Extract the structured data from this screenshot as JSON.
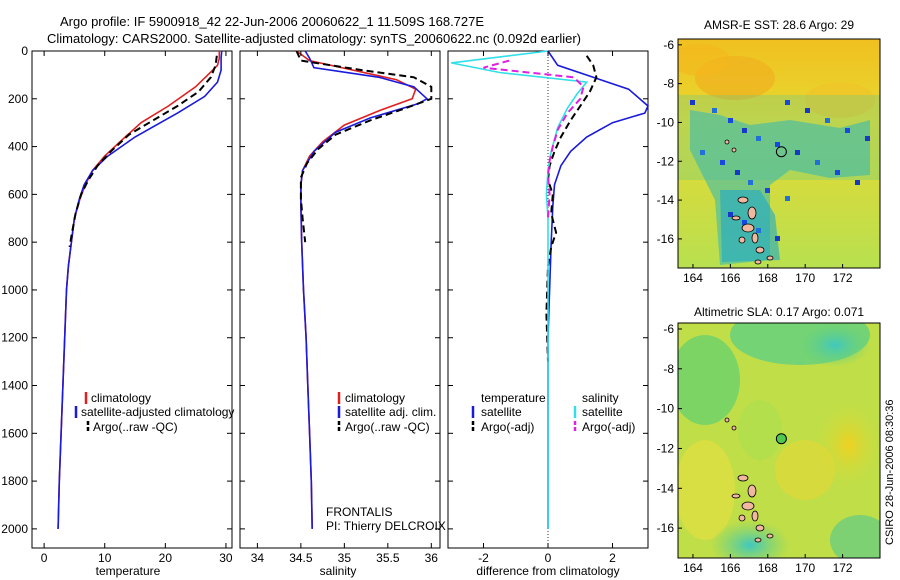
{
  "figure": {
    "title_line1": "Argo profile: IF 5900918_42 22-Jun-2006 20060622_1 11.509S 168.727E",
    "title_line2": "Climatology: CARS2000. Satellite-adjusted climatology: synTS_20060622.nc (0.092d earlier)",
    "side_caption": "CSIRO 28-Jun-2006 08:30:36"
  },
  "colors": {
    "climatology": "#e02020",
    "satellite": "#1a1adc",
    "argo": "#000000",
    "salinity_satellite": "#30e0e8",
    "salinity_argo": "#e020e0"
  },
  "chart_data": [
    {
      "id": "temperature-profile",
      "type": "line",
      "xlabel": "temperature",
      "xlim": [
        -2,
        31
      ],
      "xticks": [
        0,
        10,
        20,
        30
      ],
      "ylim": [
        2080,
        0
      ],
      "yticks": [
        0,
        200,
        400,
        600,
        800,
        1000,
        1200,
        1400,
        1600,
        1800,
        2000
      ],
      "legend": {
        "placement": "lower-right",
        "entries": [
          "climatology",
          "satellite-adjusted climatology",
          "Argo(..raw -QC)"
        ]
      },
      "series": [
        {
          "name": "climatology",
          "color_key": "climatology",
          "dash": "solid",
          "points": [
            [
              28.9,
              0
            ],
            [
              28.9,
              30
            ],
            [
              28.6,
              60
            ],
            [
              27,
              100
            ],
            [
              25,
              150
            ],
            [
              20.5,
              230
            ],
            [
              16,
              300
            ],
            [
              12.5,
              380
            ],
            [
              10,
              440
            ],
            [
              8,
              500
            ],
            [
              6.8,
              560
            ],
            [
              5.9,
              620
            ],
            [
              5.0,
              700
            ],
            [
              4.5,
              800
            ],
            [
              4.0,
              900
            ],
            [
              3.7,
              1000
            ],
            [
              3.4,
              1200
            ],
            [
              3.1,
              1400
            ],
            [
              2.8,
              1600
            ],
            [
              2.5,
              1800
            ],
            [
              2.3,
              2000
            ]
          ]
        },
        {
          "name": "satellite-adjusted climatology",
          "color_key": "satellite",
          "dash": "solid",
          "points": [
            [
              29.3,
              0
            ],
            [
              29.2,
              30
            ],
            [
              29.2,
              80
            ],
            [
              28.6,
              130
            ],
            [
              26.5,
              190
            ],
            [
              22,
              260
            ],
            [
              15,
              360
            ],
            [
              10.5,
              440
            ],
            [
              8,
              500
            ],
            [
              6.6,
              560
            ],
            [
              5.8,
              620
            ],
            [
              5.0,
              700
            ],
            [
              4.5,
              800
            ],
            [
              4.0,
              900
            ],
            [
              3.7,
              1000
            ],
            [
              3.4,
              1200
            ],
            [
              3.1,
              1400
            ],
            [
              2.8,
              1600
            ],
            [
              2.5,
              1800
            ],
            [
              2.3,
              2000
            ]
          ]
        },
        {
          "name": "Argo(..raw -QC)",
          "color_key": "argo",
          "dash": "dashed",
          "points": [
            [
              28.5,
              20
            ],
            [
              28.3,
              60
            ],
            [
              27.5,
              110
            ],
            [
              25.5,
              170
            ],
            [
              22,
              230
            ],
            [
              18,
              290
            ],
            [
              14,
              350
            ],
            [
              11,
              420
            ],
            [
              8.8,
              480
            ],
            [
              7.3,
              540
            ],
            [
              6.1,
              600
            ],
            [
              5.2,
              680
            ],
            [
              4.6,
              760
            ],
            [
              4.2,
              820
            ]
          ]
        }
      ]
    },
    {
      "id": "salinity-profile",
      "type": "line",
      "xlabel": "salinity",
      "xlim": [
        33.8,
        36.1
      ],
      "xticks": [
        34,
        34.5,
        35,
        35.5,
        36
      ],
      "ylim": [
        2080,
        0
      ],
      "legend": {
        "placement": "lower-right",
        "entries": [
          "climatology",
          "satellite adj. clim.",
          "Argo(..raw -QC)"
        ]
      },
      "annotation": {
        "line1": "FRONTALIS",
        "line2": "PI: Thierry DELCROIX"
      },
      "series": [
        {
          "name": "climatology",
          "color_key": "climatology",
          "dash": "solid",
          "points": [
            [
              34.45,
              0
            ],
            [
              34.6,
              40
            ],
            [
              35.1,
              80
            ],
            [
              35.6,
              120
            ],
            [
              35.82,
              160
            ],
            [
              35.78,
              200
            ],
            [
              35.4,
              250
            ],
            [
              35.0,
              310
            ],
            [
              34.75,
              380
            ],
            [
              34.6,
              440
            ],
            [
              34.52,
              500
            ],
            [
              34.5,
              560
            ],
            [
              34.5,
              650
            ],
            [
              34.51,
              800
            ],
            [
              34.53,
              1000
            ],
            [
              34.56,
              1200
            ],
            [
              34.58,
              1400
            ],
            [
              34.6,
              1600
            ],
            [
              34.62,
              1800
            ],
            [
              34.63,
              2000
            ]
          ]
        },
        {
          "name": "satellite adj. clim.",
          "color_key": "satellite",
          "dash": "solid",
          "points": [
            [
              34.55,
              0
            ],
            [
              34.6,
              30
            ],
            [
              34.65,
              70
            ],
            [
              35.4,
              110
            ],
            [
              35.8,
              150
            ],
            [
              35.95,
              200
            ],
            [
              35.85,
              220
            ],
            [
              35.3,
              280
            ],
            [
              34.9,
              340
            ],
            [
              34.65,
              420
            ],
            [
              34.52,
              500
            ],
            [
              34.5,
              560
            ],
            [
              34.5,
              650
            ],
            [
              34.51,
              800
            ],
            [
              34.53,
              1000
            ],
            [
              34.56,
              1200
            ],
            [
              34.58,
              1400
            ],
            [
              34.6,
              1600
            ],
            [
              34.62,
              1800
            ],
            [
              34.63,
              2000
            ]
          ]
        },
        {
          "name": "Argo(..raw -QC)",
          "color_key": "argo",
          "dash": "dashed",
          "points": [
            [
              34.45,
              0
            ],
            [
              34.5,
              40
            ],
            [
              35.2,
              80
            ],
            [
              35.8,
              110
            ],
            [
              36.0,
              150
            ],
            [
              36.0,
              200
            ],
            [
              35.7,
              240
            ],
            [
              35.3,
              290
            ],
            [
              34.9,
              350
            ],
            [
              34.7,
              410
            ],
            [
              34.57,
              470
            ],
            [
              34.5,
              530
            ],
            [
              34.5,
              620
            ],
            [
              34.52,
              700
            ],
            [
              34.55,
              800
            ]
          ]
        }
      ]
    },
    {
      "id": "difference-profile",
      "type": "line",
      "xlabel": "difference from climatology",
      "xlim": [
        -3.1,
        3.1
      ],
      "xticks": [
        -2,
        0,
        2
      ],
      "ylim": [
        2080,
        0
      ],
      "legend": {
        "placement": "lower-center",
        "temperature_header": "temperature",
        "salinity_header": "salinity",
        "entries": [
          "satellite",
          "Argo(-adj)",
          "satellite",
          "Argo(-adj)"
        ]
      },
      "series": [
        {
          "name": "temperature satellite",
          "color_key": "satellite",
          "dash": "solid",
          "points": [
            [
              0,
              0
            ],
            [
              0.3,
              60
            ],
            [
              1.4,
              110
            ],
            [
              2.5,
              160
            ],
            [
              3.1,
              230
            ],
            [
              3,
              260
            ],
            [
              2.0,
              300
            ],
            [
              1.2,
              360
            ],
            [
              0.7,
              420
            ],
            [
              0.4,
              480
            ],
            [
              0.2,
              560
            ],
            [
              0.15,
              650
            ],
            [
              0.1,
              800
            ],
            [
              0.05,
              1000
            ],
            [
              0,
              1200
            ],
            [
              0,
              1400
            ],
            [
              0,
              1600
            ],
            [
              0,
              1800
            ],
            [
              0,
              2000
            ]
          ]
        },
        {
          "name": "temperature Argo(-adj)",
          "color_key": "argo",
          "dash": "dashed",
          "points": [
            [
              1.2,
              20
            ],
            [
              1.4,
              60
            ],
            [
              1.5,
              110
            ],
            [
              1.3,
              170
            ],
            [
              1.0,
              230
            ],
            [
              0.7,
              290
            ],
            [
              0.4,
              360
            ],
            [
              0.2,
              420
            ],
            [
              0.05,
              480
            ],
            [
              0,
              540
            ],
            [
              0.15,
              600
            ],
            [
              0.1,
              680
            ],
            [
              0.25,
              760
            ],
            [
              0.1,
              820
            ],
            [
              0,
              900
            ],
            [
              -0.05,
              1100
            ],
            [
              0,
              1300
            ]
          ]
        },
        {
          "name": "salinity satellite",
          "color_key": "salinity_satellite",
          "dash": "solid",
          "points": [
            [
              0,
              0
            ],
            [
              -3.0,
              50
            ],
            [
              -1.5,
              90
            ],
            [
              1.2,
              130
            ],
            [
              0.9,
              180
            ],
            [
              0.6,
              240
            ],
            [
              0.3,
              320
            ],
            [
              0.1,
              420
            ],
            [
              0,
              500
            ],
            [
              -0.05,
              600
            ],
            [
              0,
              700
            ],
            [
              0,
              900
            ],
            [
              0,
              1200
            ],
            [
              0,
              1600
            ],
            [
              0,
              2000
            ]
          ]
        },
        {
          "name": "salinity Argo(-adj)",
          "color_key": "salinity_argo",
          "dash": "dashed",
          "points": [
            [
              -1.2,
              40
            ],
            [
              -2.0,
              70
            ],
            [
              0.8,
              110
            ],
            [
              1.1,
              150
            ],
            [
              1.0,
              200
            ],
            [
              0.6,
              260
            ],
            [
              0.3,
              330
            ],
            [
              0.15,
              400
            ],
            [
              0.05,
              460
            ],
            [
              0,
              520
            ],
            [
              0.05,
              600
            ],
            [
              0,
              700
            ]
          ]
        }
      ]
    },
    {
      "id": "sst-map",
      "type": "heatmap",
      "title": "AMSR-E SST: 28.6 Argo: 29",
      "xlim": [
        163.2,
        174
      ],
      "ylim": [
        -17.5,
        -5.7
      ],
      "xticks": [
        164,
        166,
        168,
        170,
        172
      ],
      "yticks": [
        -6,
        -8,
        -10,
        -12,
        -14,
        -16
      ],
      "marker": {
        "lon": 168.727,
        "lat": -11.509,
        "fill": "none"
      }
    },
    {
      "id": "sla-map",
      "type": "heatmap",
      "title": "Altimetric SLA: 0.17 Argo: 0.071",
      "xlim": [
        163.2,
        174
      ],
      "ylim": [
        -17.5,
        -5.7
      ],
      "xticks": [
        164,
        166,
        168,
        170,
        172
      ],
      "yticks": [
        -6,
        -8,
        -10,
        -12,
        -14,
        -16
      ],
      "marker": {
        "lon": 168.727,
        "lat": -11.509,
        "fill": "#50c850"
      }
    }
  ]
}
